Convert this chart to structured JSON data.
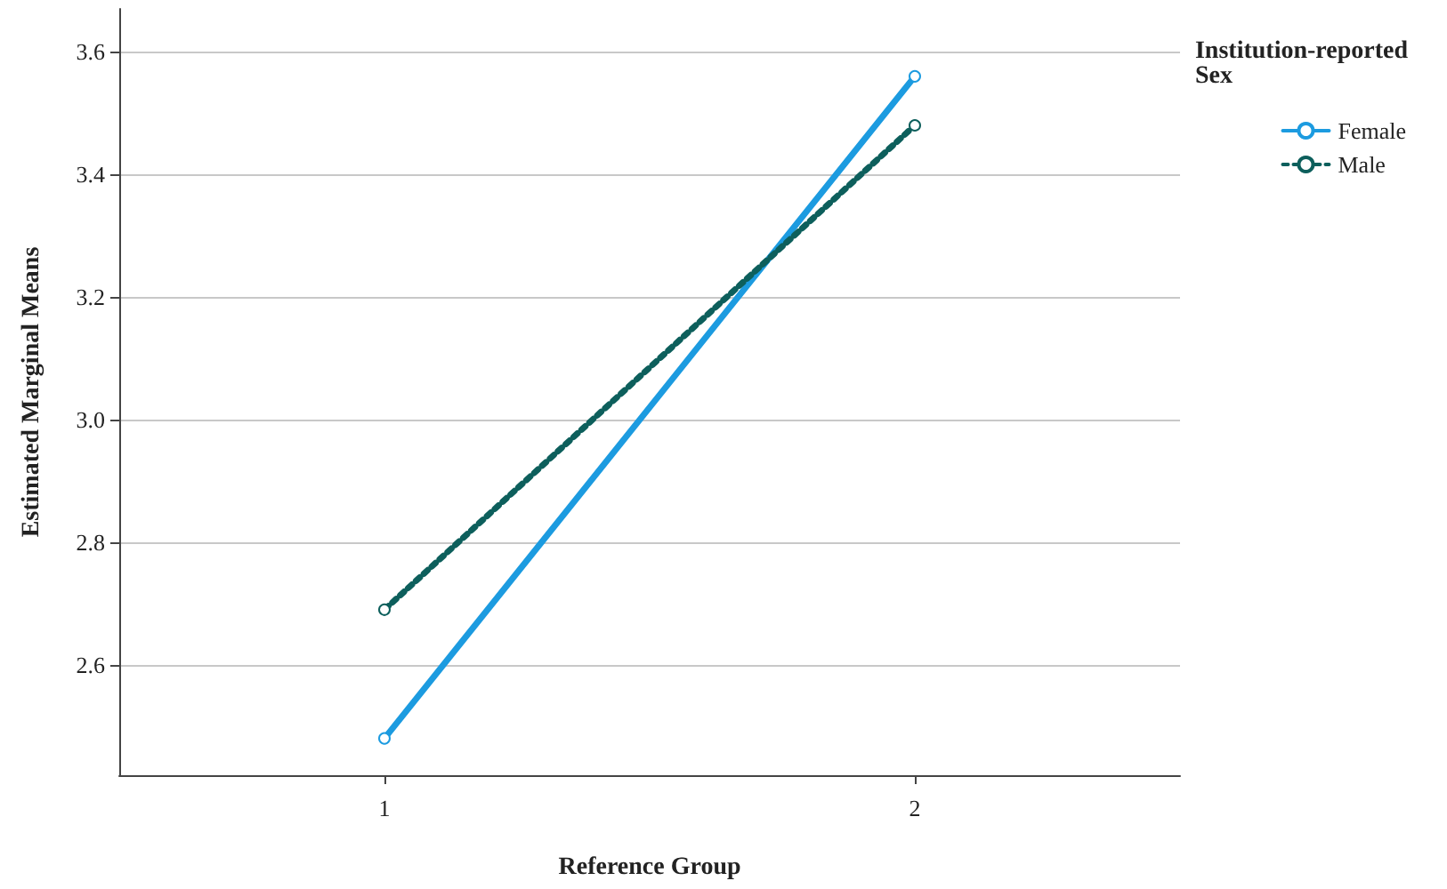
{
  "chart_data": {
    "type": "line",
    "xlabel": "Reference Group",
    "ylabel": "Estimated Marginal Means",
    "legend_title": "Institution-reported\nSex",
    "categories": [
      "1",
      "2"
    ],
    "series": [
      {
        "name": "Female",
        "color": "#1c9be0",
        "values": [
          2.48,
          3.56
        ],
        "line_style": "solid"
      },
      {
        "name": "Male",
        "color": "#0d5f5c",
        "values": [
          2.69,
          3.48
        ],
        "line_style": "dotted"
      }
    ],
    "ylim": [
      2.42,
      3.67
    ],
    "yticks": [
      2.6,
      2.8,
      {
        "value": 3.0,
        "label": "3.0"
      },
      3.2,
      3.4,
      3.6
    ],
    "grid": "y",
    "legend": "top right",
    "marker": "circle"
  }
}
